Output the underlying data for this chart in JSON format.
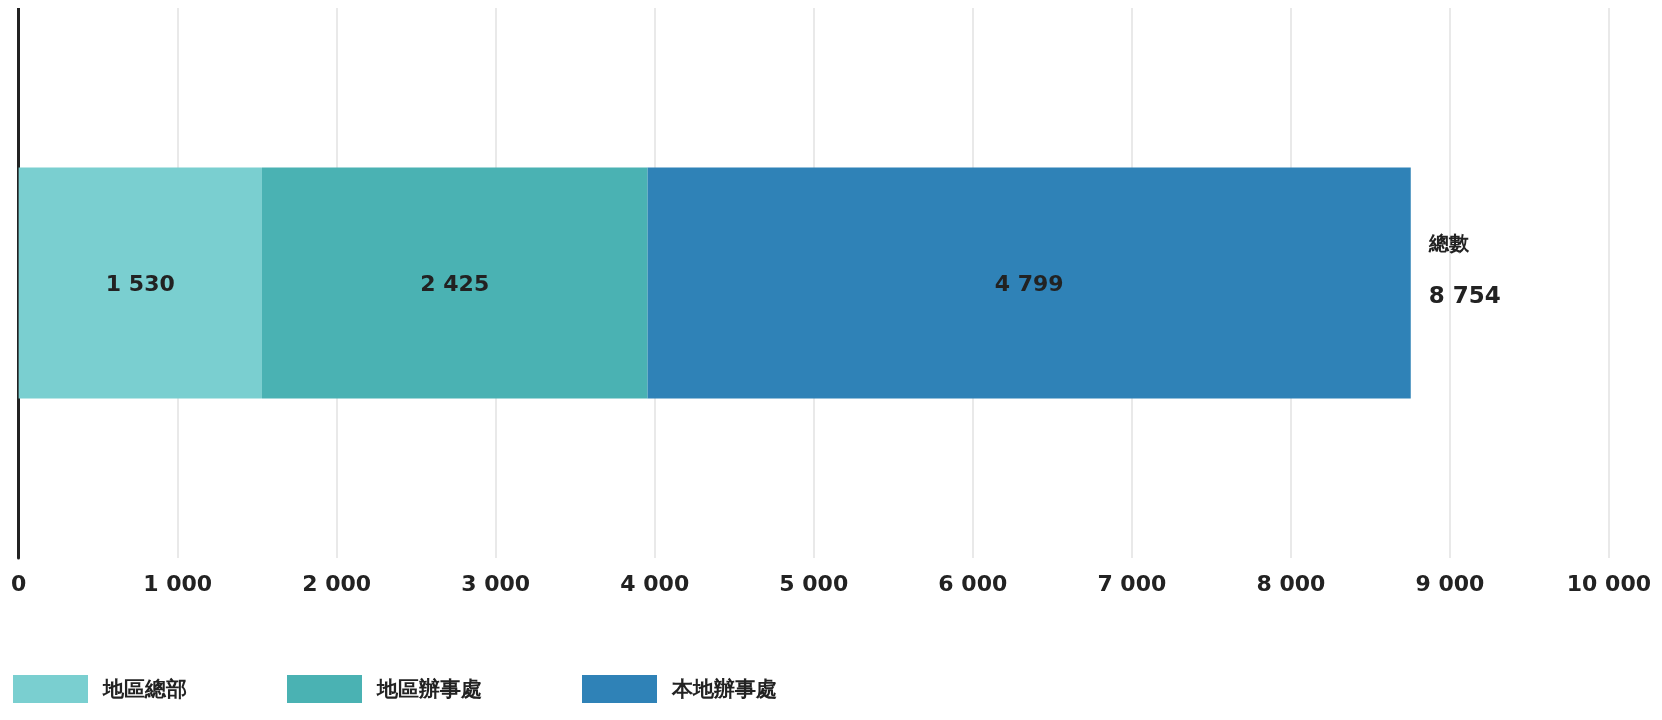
{
  "chart_data": {
    "type": "bar",
    "orientation": "horizontal",
    "stacked": true,
    "categories": [
      null
    ],
    "series": [
      {
        "name": "地區總部",
        "color": "#7acfd0",
        "values": [
          1530
        ],
        "value_labels": [
          "1 530"
        ]
      },
      {
        "name": "地區辦事處",
        "color": "#4ab2b3",
        "values": [
          2425
        ],
        "value_labels": [
          "2 425"
        ]
      },
      {
        "name": "本地辦事處",
        "color": "#2f82b7",
        "values": [
          4799
        ],
        "value_labels": [
          "4 799"
        ]
      }
    ],
    "totals": [
      "8 754"
    ],
    "annotations": [
      "總數"
    ],
    "xlim": [
      0,
      10000
    ],
    "xticks": [
      0,
      {
        "value": 1000,
        "label": "1 000"
      },
      {
        "value": 2000,
        "label": "2 000"
      },
      {
        "value": 3000,
        "label": "3 000"
      },
      {
        "value": 4000,
        "label": "4 000"
      },
      {
        "value": 5000,
        "label": "5 000"
      },
      {
        "value": 6000,
        "label": "6 000"
      },
      {
        "value": 7000,
        "label": "7 000"
      },
      {
        "value": 8000,
        "label": "8 000"
      },
      {
        "value": 9000,
        "label": "9 000"
      },
      {
        "value": 10000,
        "label": "10 000"
      }
    ],
    "grid": "x",
    "legend": "bottom left",
    "tick_labels": "x"
  }
}
